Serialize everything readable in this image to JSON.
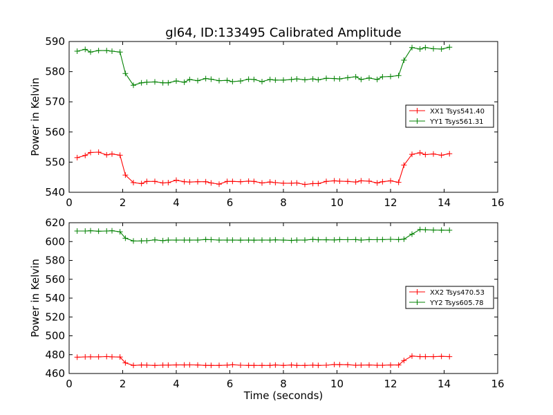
{
  "chart_data": [
    {
      "type": "line",
      "title": "gl64, ID:133495 Calibrated Amplitude",
      "xlabel": "",
      "ylabel": "Power in Kelvin",
      "xlim": [
        0,
        16
      ],
      "ylim": [
        540,
        590
      ],
      "xticks": [
        0,
        2,
        4,
        6,
        8,
        10,
        12,
        14,
        16
      ],
      "yticks": [
        540,
        550,
        560,
        570,
        580,
        590
      ],
      "grid": false,
      "legend": "center-right",
      "x": [
        0.3,
        0.6,
        0.8,
        1.1,
        1.4,
        1.6,
        1.9,
        2.1,
        2.4,
        2.7,
        2.9,
        3.2,
        3.5,
        3.7,
        4.0,
        4.3,
        4.5,
        4.8,
        5.1,
        5.3,
        5.6,
        5.9,
        6.1,
        6.4,
        6.7,
        6.9,
        7.2,
        7.5,
        7.7,
        8.0,
        8.3,
        8.5,
        8.8,
        9.1,
        9.3,
        9.6,
        9.9,
        10.1,
        10.4,
        10.7,
        10.9,
        11.2,
        11.5,
        11.7,
        12.0,
        12.3,
        12.5,
        12.8,
        13.1,
        13.3,
        13.6,
        13.9,
        14.2
      ],
      "series": [
        {
          "name": "XX1 Tsys541.40",
          "color": "#ff0000",
          "values": [
            551.5,
            552.2,
            553.2,
            553.3,
            552.4,
            552.7,
            552.3,
            545.7,
            543.2,
            542.9,
            543.6,
            543.6,
            543.1,
            543.2,
            544.0,
            543.5,
            543.4,
            543.5,
            543.5,
            543.1,
            542.7,
            543.6,
            543.6,
            543.5,
            543.7,
            543.6,
            543.1,
            543.4,
            543.2,
            543.0,
            543.0,
            543.1,
            542.6,
            542.9,
            542.9,
            543.6,
            543.8,
            543.7,
            543.6,
            543.4,
            543.8,
            543.7,
            543.1,
            543.5,
            543.8,
            543.3,
            549.0,
            552.6,
            553.1,
            552.5,
            552.7,
            552.3,
            552.8
          ]
        },
        {
          "name": "YY1 Tsys561.31",
          "color": "#008000",
          "values": [
            586.8,
            587.4,
            586.5,
            587.0,
            587.0,
            586.8,
            586.5,
            579.4,
            575.5,
            576.3,
            576.5,
            576.6,
            576.3,
            576.3,
            576.9,
            576.5,
            577.4,
            577.0,
            577.7,
            577.5,
            577.0,
            577.1,
            576.7,
            576.9,
            577.5,
            577.4,
            576.7,
            577.4,
            577.2,
            577.2,
            577.4,
            577.6,
            577.3,
            577.6,
            577.3,
            577.8,
            577.7,
            577.6,
            578.0,
            578.3,
            577.4,
            577.9,
            577.4,
            578.3,
            578.4,
            578.7,
            583.8,
            588.0,
            587.5,
            588.0,
            587.6,
            587.5,
            588.1
          ]
        }
      ]
    },
    {
      "type": "line",
      "title": "",
      "xlabel": "Time (seconds)",
      "ylabel": "Power in Kelvin",
      "xlim": [
        0,
        16
      ],
      "ylim": [
        460,
        620
      ],
      "xticks": [
        0,
        2,
        4,
        6,
        8,
        10,
        12,
        14,
        16
      ],
      "yticks": [
        460,
        480,
        500,
        520,
        540,
        560,
        580,
        600,
        620
      ],
      "grid": false,
      "legend": "center-right",
      "x": [
        0.3,
        0.6,
        0.8,
        1.1,
        1.4,
        1.6,
        1.9,
        2.1,
        2.4,
        2.7,
        2.9,
        3.2,
        3.5,
        3.7,
        4.0,
        4.3,
        4.5,
        4.8,
        5.1,
        5.3,
        5.6,
        5.9,
        6.1,
        6.4,
        6.7,
        6.9,
        7.2,
        7.5,
        7.7,
        8.0,
        8.3,
        8.5,
        8.8,
        9.1,
        9.3,
        9.6,
        9.9,
        10.1,
        10.4,
        10.7,
        10.9,
        11.2,
        11.5,
        11.7,
        12.0,
        12.3,
        12.5,
        12.8,
        13.1,
        13.3,
        13.6,
        13.9,
        14.2
      ],
      "series": [
        {
          "name": "XX2 Tsys470.53",
          "color": "#ff0000",
          "values": [
            477.3,
            477.6,
            477.7,
            477.7,
            478.0,
            477.7,
            477.5,
            471.3,
            468.6,
            469.0,
            468.9,
            468.6,
            468.9,
            468.9,
            469.1,
            469.1,
            469.2,
            469.0,
            468.6,
            468.6,
            468.6,
            468.9,
            469.3,
            468.8,
            468.6,
            468.6,
            468.6,
            468.6,
            469.0,
            468.6,
            469.0,
            468.6,
            468.6,
            468.9,
            468.6,
            468.8,
            469.5,
            469.4,
            469.3,
            468.7,
            468.9,
            469.0,
            468.7,
            468.7,
            469.0,
            469.0,
            473.8,
            478.5,
            477.9,
            477.9,
            477.9,
            478.2,
            477.9
          ]
        },
        {
          "name": "YY2 Tsys605.78",
          "color": "#008000",
          "values": [
            611.2,
            611.2,
            611.5,
            611.0,
            611.2,
            611.5,
            610.4,
            603.6,
            600.6,
            600.7,
            600.9,
            601.8,
            601.0,
            601.6,
            601.6,
            601.6,
            601.6,
            601.6,
            602.2,
            602.0,
            601.6,
            601.6,
            601.6,
            601.5,
            601.6,
            601.5,
            601.6,
            601.6,
            601.8,
            601.6,
            601.2,
            601.6,
            601.6,
            602.3,
            601.9,
            601.9,
            601.7,
            602.1,
            602.0,
            602.1,
            601.6,
            602.1,
            602.0,
            602.1,
            602.4,
            602.1,
            602.6,
            607.9,
            612.8,
            612.5,
            612.2,
            612.1,
            612.0
          ]
        }
      ]
    }
  ]
}
